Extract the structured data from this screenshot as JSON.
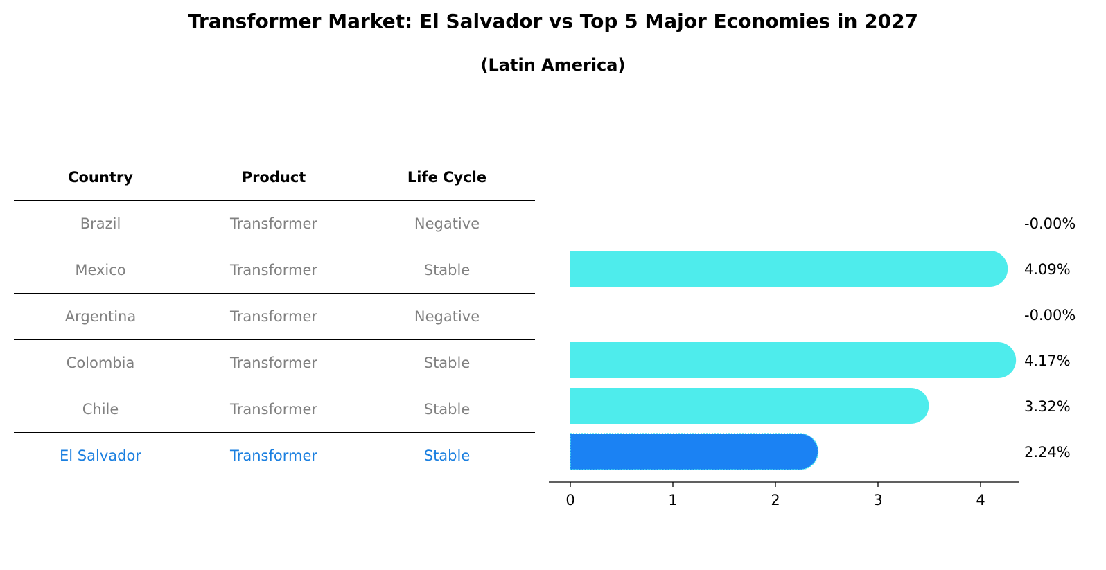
{
  "title": "Transformer Market: El Salvador vs Top 5 Major Economies in 2027",
  "subtitle": "(Latin America)",
  "table": {
    "headers": [
      "Country",
      "Product",
      "Life Cycle"
    ],
    "rows": [
      [
        "Brazil",
        "Transformer",
        "Negative"
      ],
      [
        "Mexico",
        "Transformer",
        "Stable"
      ],
      [
        "Argentina",
        "Transformer",
        "Negative"
      ],
      [
        "Colombia",
        "Transformer",
        "Stable"
      ],
      [
        "Chile",
        "Transformer",
        "Stable"
      ],
      [
        "El Salvador",
        "Transformer",
        "Stable"
      ]
    ],
    "highlight_row": "El Salvador",
    "colors": {
      "text": "#808080",
      "highlight": "#1a7fe0",
      "header": "#000000"
    }
  },
  "chart_data": {
    "type": "bar",
    "orientation": "horizontal",
    "categories": [
      "Brazil",
      "Mexico",
      "Argentina",
      "Colombia",
      "Chile",
      "El Salvador"
    ],
    "values": [
      0.0,
      4.09,
      0.0,
      4.17,
      3.32,
      2.24
    ],
    "value_labels": [
      "-0.00%",
      "4.09%",
      "-0.00%",
      "4.17%",
      "3.32%",
      "2.24%"
    ],
    "xlim": [
      -0.2,
      4.4
    ],
    "xticks": [
      0,
      1,
      2,
      3,
      4
    ],
    "highlight": "El Salvador",
    "colors": {
      "bar": "#4eecec",
      "highlight": "#1b82f3"
    },
    "grid": false
  }
}
